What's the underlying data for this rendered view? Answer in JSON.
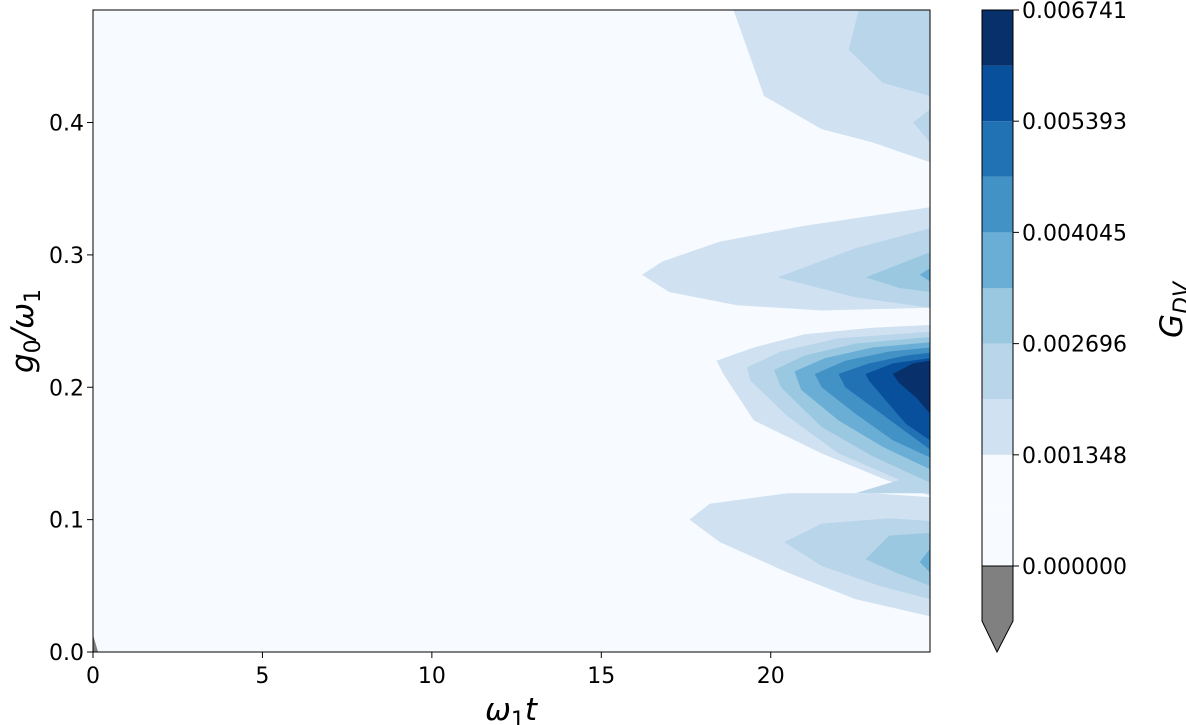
{
  "chart_data": {
    "type": "heatmap",
    "subtype": "filled-contour",
    "xlabel_parts": {
      "main": "ω",
      "sub": "1",
      "tail": "t"
    },
    "ylabel_parts": {
      "a": "g",
      "a_sub": "0",
      "slash": "/ω",
      "b_sub": "1"
    },
    "colorbar_label_parts": {
      "main": "G",
      "sub": "DV"
    },
    "xlim": [
      0,
      24.7
    ],
    "ylim": [
      0,
      0.485
    ],
    "xticks": [
      {
        "value": 0,
        "label": "0"
      },
      {
        "value": 5,
        "label": "5"
      },
      {
        "value": 10,
        "label": "10"
      },
      {
        "value": 15,
        "label": "15"
      },
      {
        "value": 20,
        "label": "20"
      }
    ],
    "yticks": [
      {
        "value": 0.0,
        "label": "0.0"
      },
      {
        "value": 0.1,
        "label": "0.1"
      },
      {
        "value": 0.2,
        "label": "0.2"
      },
      {
        "value": 0.3,
        "label": "0.3"
      },
      {
        "value": 0.4,
        "label": "0.4"
      }
    ],
    "colorbar": {
      "min": -0.000674,
      "max": 0.006741,
      "extend": "min",
      "ticks": [
        {
          "value": 0.0,
          "label": "0.000000"
        },
        {
          "value": 0.001348,
          "label": "0.001348"
        },
        {
          "value": 0.002696,
          "label": "0.002696"
        },
        {
          "value": 0.004045,
          "label": "0.004045"
        },
        {
          "value": 0.005393,
          "label": "0.005393"
        },
        {
          "value": 0.006741,
          "label": "0.006741"
        }
      ],
      "levels": [
        {
          "from": -0.000674,
          "to": 0.0,
          "color": "#808080"
        },
        {
          "from": 0.0,
          "to": 0.000674,
          "color": "#f7fbff"
        },
        {
          "from": 0.000674,
          "to": 0.001348,
          "color": "#f7fbff"
        },
        {
          "from": 0.001348,
          "to": 0.002022,
          "color": "#d0e1f2"
        },
        {
          "from": 0.002022,
          "to": 0.002696,
          "color": "#b9d5ea"
        },
        {
          "from": 0.002696,
          "to": 0.00337,
          "color": "#9ac8e0"
        },
        {
          "from": 0.00337,
          "to": 0.004045,
          "color": "#6aaed6"
        },
        {
          "from": 0.004045,
          "to": 0.004719,
          "color": "#4292c6"
        },
        {
          "from": 0.004719,
          "to": 0.005393,
          "color": "#2171b5"
        },
        {
          "from": 0.005393,
          "to": 0.006067,
          "color": "#08509b"
        },
        {
          "from": 0.006067,
          "to": 0.006741,
          "color": "#08306b"
        }
      ]
    },
    "regions": [
      {
        "level": 1,
        "color": "#d0e1f2",
        "points": [
          [
            18.9,
            0.485
          ],
          [
            19.8,
            0.42
          ],
          [
            21.5,
            0.395
          ],
          [
            23.0,
            0.385
          ],
          [
            24.7,
            0.37
          ],
          [
            24.7,
            0.485
          ]
        ]
      },
      {
        "level": 2,
        "color": "#b9d5ea",
        "points": [
          [
            22.6,
            0.485
          ],
          [
            22.3,
            0.455
          ],
          [
            23.3,
            0.43
          ],
          [
            24.7,
            0.42
          ],
          [
            24.7,
            0.485
          ]
        ]
      },
      {
        "level": 2,
        "color": "#b9d5ea",
        "points": [
          [
            24.7,
            0.41
          ],
          [
            24.2,
            0.4
          ],
          [
            24.7,
            0.385
          ]
        ]
      },
      {
        "level": 1,
        "color": "#d0e1f2",
        "points": [
          [
            16.2,
            0.285
          ],
          [
            16.8,
            0.295
          ],
          [
            18.5,
            0.31
          ],
          [
            21.0,
            0.322
          ],
          [
            24.7,
            0.336
          ],
          [
            24.7,
            0.26
          ],
          [
            21.5,
            0.258
          ],
          [
            19.0,
            0.262
          ],
          [
            17.0,
            0.272
          ]
        ]
      },
      {
        "level": 2,
        "color": "#b9d5ea",
        "points": [
          [
            20.2,
            0.283
          ],
          [
            22.5,
            0.305
          ],
          [
            24.7,
            0.32
          ],
          [
            24.7,
            0.26
          ],
          [
            22.5,
            0.268
          ]
        ]
      },
      {
        "level": 3,
        "color": "#9ac8e0",
        "points": [
          [
            22.8,
            0.283
          ],
          [
            24.7,
            0.302
          ],
          [
            24.7,
            0.272
          ],
          [
            23.8,
            0.275
          ]
        ]
      },
      {
        "level": 4,
        "color": "#6aaed6",
        "points": [
          [
            24.4,
            0.285
          ],
          [
            24.7,
            0.29
          ],
          [
            24.7,
            0.28
          ]
        ]
      },
      {
        "level": 1,
        "color": "#d0e1f2",
        "points": [
          [
            18.4,
            0.22
          ],
          [
            19.5,
            0.23
          ],
          [
            21.0,
            0.24
          ],
          [
            23.0,
            0.245
          ],
          [
            24.7,
            0.247
          ],
          [
            24.7,
            0.118
          ],
          [
            23.4,
            0.13
          ],
          [
            21.5,
            0.15
          ],
          [
            19.5,
            0.175
          ],
          [
            18.6,
            0.21
          ]
        ]
      },
      {
        "level": 2,
        "color": "#b9d5ea",
        "points": [
          [
            19.3,
            0.215
          ],
          [
            20.3,
            0.227
          ],
          [
            22.0,
            0.237
          ],
          [
            24.7,
            0.242
          ],
          [
            24.7,
            0.12
          ],
          [
            22.5,
            0.12
          ],
          [
            23.8,
            0.13
          ],
          [
            22.0,
            0.15
          ],
          [
            20.5,
            0.178
          ],
          [
            19.4,
            0.205
          ]
        ]
      },
      {
        "level": 3,
        "color": "#9ac8e0",
        "points": [
          [
            20.1,
            0.213
          ],
          [
            21.0,
            0.224
          ],
          [
            22.5,
            0.233
          ],
          [
            24.7,
            0.238
          ],
          [
            24.7,
            0.128
          ],
          [
            23.0,
            0.148
          ],
          [
            21.5,
            0.17
          ],
          [
            20.3,
            0.2
          ]
        ]
      },
      {
        "level": 4,
        "color": "#6aaed6",
        "points": [
          [
            20.7,
            0.212
          ],
          [
            21.6,
            0.222
          ],
          [
            23.0,
            0.23
          ],
          [
            24.7,
            0.234
          ],
          [
            24.7,
            0.138
          ],
          [
            23.3,
            0.155
          ],
          [
            22.0,
            0.175
          ],
          [
            20.9,
            0.198
          ]
        ]
      },
      {
        "level": 5,
        "color": "#4292c6",
        "points": [
          [
            21.3,
            0.21
          ],
          [
            22.2,
            0.22
          ],
          [
            23.5,
            0.227
          ],
          [
            24.7,
            0.23
          ],
          [
            24.7,
            0.147
          ],
          [
            23.6,
            0.16
          ],
          [
            22.5,
            0.18
          ],
          [
            21.5,
            0.2
          ]
        ]
      },
      {
        "level": 6,
        "color": "#2171b5",
        "points": [
          [
            22.0,
            0.21
          ],
          [
            22.9,
            0.218
          ],
          [
            24.0,
            0.224
          ],
          [
            24.7,
            0.226
          ],
          [
            24.7,
            0.153
          ],
          [
            23.9,
            0.168
          ],
          [
            23.0,
            0.185
          ],
          [
            22.2,
            0.2
          ]
        ]
      },
      {
        "level": 7,
        "color": "#08509b",
        "points": [
          [
            22.8,
            0.21
          ],
          [
            23.6,
            0.218
          ],
          [
            24.7,
            0.222
          ],
          [
            24.7,
            0.16
          ],
          [
            24.0,
            0.172
          ],
          [
            23.4,
            0.19
          ],
          [
            22.9,
            0.205
          ]
        ]
      },
      {
        "level": 8,
        "color": "#08306b",
        "points": [
          [
            23.6,
            0.21
          ],
          [
            24.2,
            0.218
          ],
          [
            24.7,
            0.22
          ],
          [
            24.7,
            0.18
          ],
          [
            24.3,
            0.192
          ],
          [
            23.8,
            0.203
          ]
        ]
      },
      {
        "level": 1,
        "color": "#d0e1f2",
        "points": [
          [
            17.6,
            0.1
          ],
          [
            18.2,
            0.112
          ],
          [
            20.5,
            0.12
          ],
          [
            23.0,
            0.12
          ],
          [
            24.7,
            0.117
          ],
          [
            24.7,
            0.027
          ],
          [
            22.5,
            0.04
          ],
          [
            20.5,
            0.06
          ],
          [
            18.5,
            0.083
          ]
        ]
      },
      {
        "level": 2,
        "color": "#b9d5ea",
        "points": [
          [
            20.4,
            0.083
          ],
          [
            21.5,
            0.097
          ],
          [
            23.5,
            0.101
          ],
          [
            24.7,
            0.099
          ],
          [
            24.7,
            0.04
          ],
          [
            23.2,
            0.05
          ],
          [
            21.5,
            0.065
          ]
        ]
      },
      {
        "level": 3,
        "color": "#9ac8e0",
        "points": [
          [
            22.8,
            0.07
          ],
          [
            23.5,
            0.088
          ],
          [
            24.7,
            0.09
          ],
          [
            24.7,
            0.05
          ],
          [
            23.7,
            0.06
          ]
        ]
      },
      {
        "level": 4,
        "color": "#6aaed6",
        "points": [
          [
            24.4,
            0.068
          ],
          [
            24.7,
            0.078
          ],
          [
            24.7,
            0.06
          ]
        ]
      },
      {
        "level": 0,
        "color": "#808080",
        "points": [
          [
            0,
            0
          ],
          [
            0,
            0.013
          ],
          [
            0.15,
            0.0
          ]
        ]
      }
    ]
  }
}
